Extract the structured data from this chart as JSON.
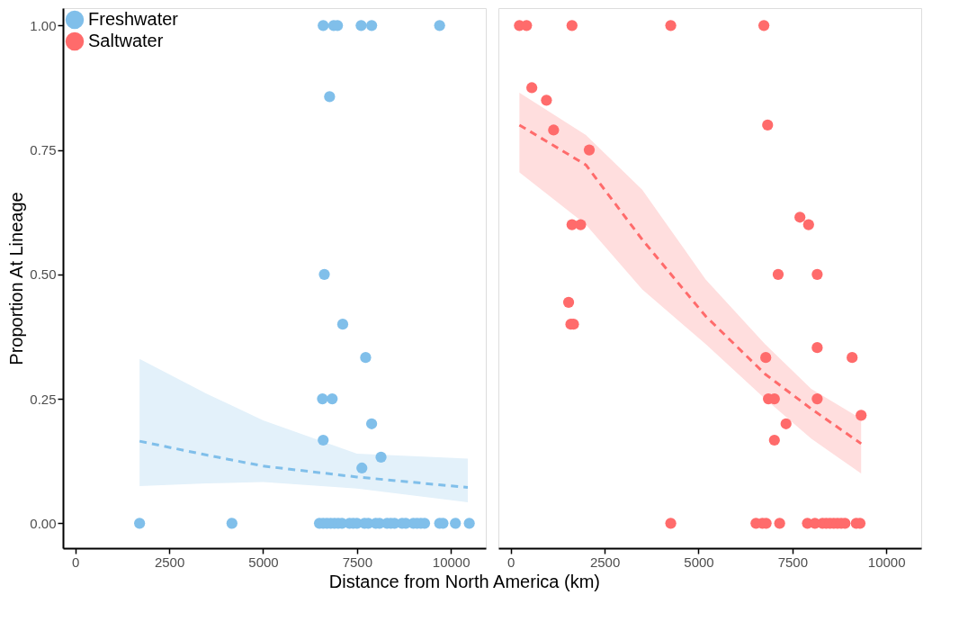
{
  "chart_data": [
    {
      "type": "scatter",
      "ylabel": "Proportion At Lineage",
      "xlabel": "Distance from North America (km)",
      "legend": "top left",
      "grid": false,
      "xlim": [
        -330,
        10930
      ],
      "xticks": [
        0,
        2500,
        5000,
        7500,
        10000
      ],
      "ylim": [
        -0.05,
        1.035
      ],
      "yticks": [
        {
          "value": 0,
          "label": "0.00"
        },
        {
          "value": 0.25,
          "label": "0.25"
        },
        {
          "value": 0.5,
          "label": "0.50"
        },
        {
          "value": 0.75,
          "label": "0.75"
        },
        {
          "value": 1,
          "label": "1.00"
        }
      ],
      "series": [
        {
          "type": "line",
          "color": "#80bfea",
          "line_style": "dashed",
          "x": [
            1710,
            3500,
            5000,
            7500,
            10450
          ],
          "values": [
            0.165,
            0.137,
            0.115,
            0.093,
            0.072
          ],
          "lower": [
            0.075,
            0.08,
            0.083,
            0.07,
            0.042
          ],
          "upper": [
            0.33,
            0.26,
            0.207,
            0.14,
            0.13
          ]
        },
        {
          "name": "Freshwater",
          "color": "#80bfea",
          "marker": "circle",
          "x": [
            6600,
            6880,
            6980,
            7610,
            7890,
            9700,
            6770,
            6630,
            7120,
            7730,
            6580,
            6840,
            7890,
            6600,
            8140,
            7630,
            1710,
            4170,
            6500,
            6600,
            6700,
            6800,
            6900,
            7000,
            7100,
            7300,
            7400,
            7500,
            7700,
            7800,
            8000,
            8100,
            8300,
            8400,
            8500,
            8700,
            8800,
            9000,
            9100,
            9200,
            9300,
            9700,
            9790,
            10120,
            10490
          ],
          "values": [
            1,
            1,
            1,
            1,
            1,
            1,
            0.857,
            0.5,
            0.4,
            0.333,
            0.25,
            0.25,
            0.2,
            0.167,
            0.133,
            0.111,
            0,
            0,
            0,
            0,
            0,
            0,
            0,
            0,
            0,
            0,
            0,
            0,
            0,
            0,
            0,
            0,
            0,
            0,
            0,
            0,
            0,
            0,
            0,
            0,
            0,
            0,
            0,
            0,
            0
          ]
        }
      ]
    },
    {
      "type": "scatter",
      "legend": "top left",
      "grid": false,
      "tick_labels": "x",
      "xlim": [
        -330,
        10930
      ],
      "xticks": [
        0,
        2500,
        5000,
        7500,
        10000
      ],
      "ylim": [
        -0.05,
        1.035
      ],
      "series": [
        {
          "type": "line",
          "color": "#ff6b6b",
          "line_style": "dashed",
          "x": [
            230,
            2000,
            3500,
            5190,
            6770,
            8000,
            9330
          ],
          "values": [
            0.8,
            0.72,
            0.57,
            0.416,
            0.3,
            0.23,
            0.16
          ],
          "lower": [
            0.705,
            0.6,
            0.47,
            0.36,
            0.25,
            0.17,
            0.1
          ],
          "upper": [
            0.865,
            0.78,
            0.67,
            0.49,
            0.36,
            0.27,
            0.21
          ]
        },
        {
          "name": "Saltwater",
          "color": "#ff6b6b",
          "marker": "circle",
          "x": [
            230,
            420,
            1630,
            4260,
            6740,
            560,
            950,
            1140,
            2090,
            1630,
            1860,
            1540,
            1600,
            1670,
            6840,
            7700,
            7930,
            7120,
            8160,
            6790,
            8160,
            9090,
            6860,
            7020,
            8160,
            7330,
            7020,
            9330,
            4260,
            6530,
            6700,
            6800,
            7160,
            7900,
            8100,
            8300,
            8400,
            8500,
            8600,
            8700,
            8800,
            8900,
            9200,
            9300
          ],
          "values": [
            1,
            1,
            1,
            1,
            1,
            0.875,
            0.85,
            0.79,
            0.75,
            0.6,
            0.6,
            0.444,
            0.4,
            0.4,
            0.8,
            0.615,
            0.6,
            0.5,
            0.5,
            0.333,
            0.353,
            0.333,
            0.25,
            0.25,
            0.25,
            0.2,
            0.167,
            0.217,
            0,
            0,
            0,
            0,
            0,
            0,
            0,
            0,
            0,
            0,
            0,
            0,
            0,
            0,
            0,
            0
          ]
        }
      ]
    }
  ]
}
